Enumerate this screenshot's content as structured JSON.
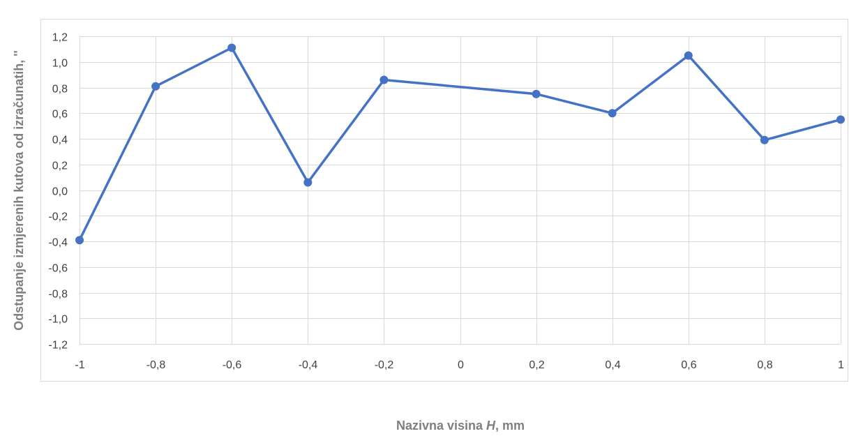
{
  "chart_data": {
    "type": "line",
    "title": "",
    "xlabel_prefix": "Nazivna visina ",
    "xlabel_var": "H",
    "xlabel_suffix": ", mm",
    "ylabel": "Odstupanje izmjerenih kutova od izračunatih, ''",
    "x": [
      -1,
      -0.8,
      -0.6,
      -0.4,
      -0.2,
      0.2,
      0.4,
      0.6,
      0.8,
      1
    ],
    "series": [
      {
        "values": [
          -0.39,
          0.81,
          1.11,
          0.06,
          0.86,
          0.75,
          0.6,
          1.05,
          0.39,
          0.55
        ],
        "color": "#4472c4"
      }
    ],
    "xlim": [
      -1,
      1
    ],
    "ylim": [
      -1.2,
      1.2
    ],
    "x_ticks": [
      -1,
      -0.8,
      -0.6,
      -0.4,
      -0.2,
      0,
      0.2,
      0.4,
      0.6,
      0.8,
      1
    ],
    "x_tick_labels": [
      "-1",
      "-0,8",
      "-0,6",
      "-0,4",
      "-0,2",
      "0",
      "0,2",
      "0,4",
      "0,6",
      "0,8",
      "1"
    ],
    "y_ticks": [
      -1.2,
      -1.0,
      -0.8,
      -0.6,
      -0.4,
      -0.2,
      0,
      0.2,
      0.4,
      0.6,
      0.8,
      1.0,
      1.2
    ],
    "y_tick_labels": [
      "-1,2",
      "-1,0",
      "-0,8",
      "-0,6",
      "-0,4",
      "-0,2",
      "0,0",
      "0,2",
      "0,4",
      "0,6",
      "0,8",
      "1,0",
      "1,2"
    ],
    "grid": true,
    "legend": "none",
    "gridline_color": "#d9d9d9",
    "label_color": "#7f7f7f"
  }
}
